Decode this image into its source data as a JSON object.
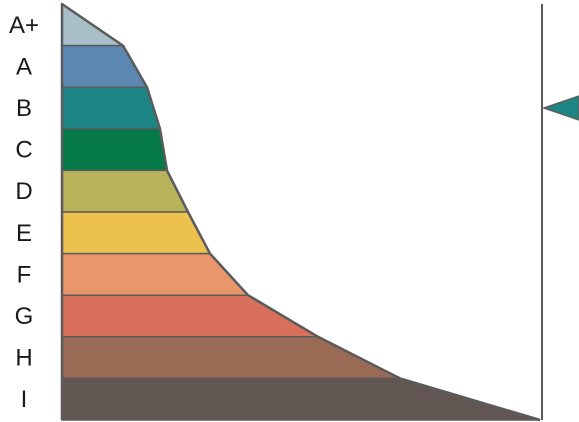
{
  "scale": {
    "grades": [
      {
        "label": "A+",
        "color": "#a8bfc8"
      },
      {
        "label": "A",
        "color": "#5b87b0"
      },
      {
        "label": "B",
        "color": "#1e8585"
      },
      {
        "label": "C",
        "color": "#057a48"
      },
      {
        "label": "D",
        "color": "#b8b35a"
      },
      {
        "label": "E",
        "color": "#ecc14e"
      },
      {
        "label": "F",
        "color": "#e9966b"
      },
      {
        "label": "G",
        "color": "#d9705b"
      },
      {
        "label": "H",
        "color": "#9a6a55"
      },
      {
        "label": "I",
        "color": "#625652"
      }
    ],
    "outline_color": "#5b5b5b",
    "indicator": {
      "grade": "B",
      "color": "#1e8585"
    }
  }
}
